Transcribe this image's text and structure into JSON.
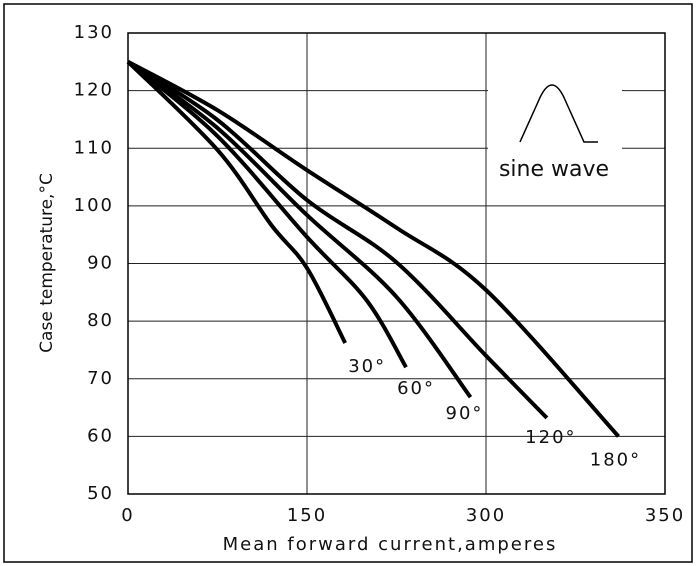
{
  "chart_data": {
    "type": "line",
    "ylabel": "Case temperature,°C",
    "xlabel": "Mean forward current,amperes",
    "annotation": "sine wave",
    "xlim": [
      0,
      350
    ],
    "xticks": [
      0,
      150,
      300,
      350
    ],
    "ylim": [
      50,
      130
    ],
    "yticks": [
      50,
      60,
      70,
      80,
      90,
      100,
      110,
      120,
      130
    ],
    "grid": true,
    "series": [
      {
        "name": "30°",
        "color": "#000000",
        "x": [
          0,
          75,
          120,
          150,
          182
        ],
        "values": [
          125,
          109.7,
          96.7,
          89.2,
          76.2
        ]
      },
      {
        "name": "60°",
        "color": "#000000",
        "x": [
          0,
          75,
          150,
          200,
          233
        ],
        "values": [
          125,
          112.1,
          94.6,
          83.6,
          72
        ]
      },
      {
        "name": "90°",
        "color": "#000000",
        "x": [
          0,
          75,
          150,
          225,
          287
        ],
        "values": [
          125,
          113.5,
          98.4,
          84.2,
          66.8
        ]
      },
      {
        "name": "120°",
        "color": "#000000",
        "x": [
          0,
          75,
          150,
          225,
          300,
          317
        ],
        "values": [
          125,
          114.9,
          101,
          90.2,
          74,
          63.2
        ]
      },
      {
        "name": "180°",
        "color": "#000000",
        "x": [
          0,
          75,
          150,
          225,
          300,
          337
        ],
        "values": [
          125,
          116.6,
          106.2,
          96.2,
          85.4,
          60
        ]
      }
    ]
  }
}
